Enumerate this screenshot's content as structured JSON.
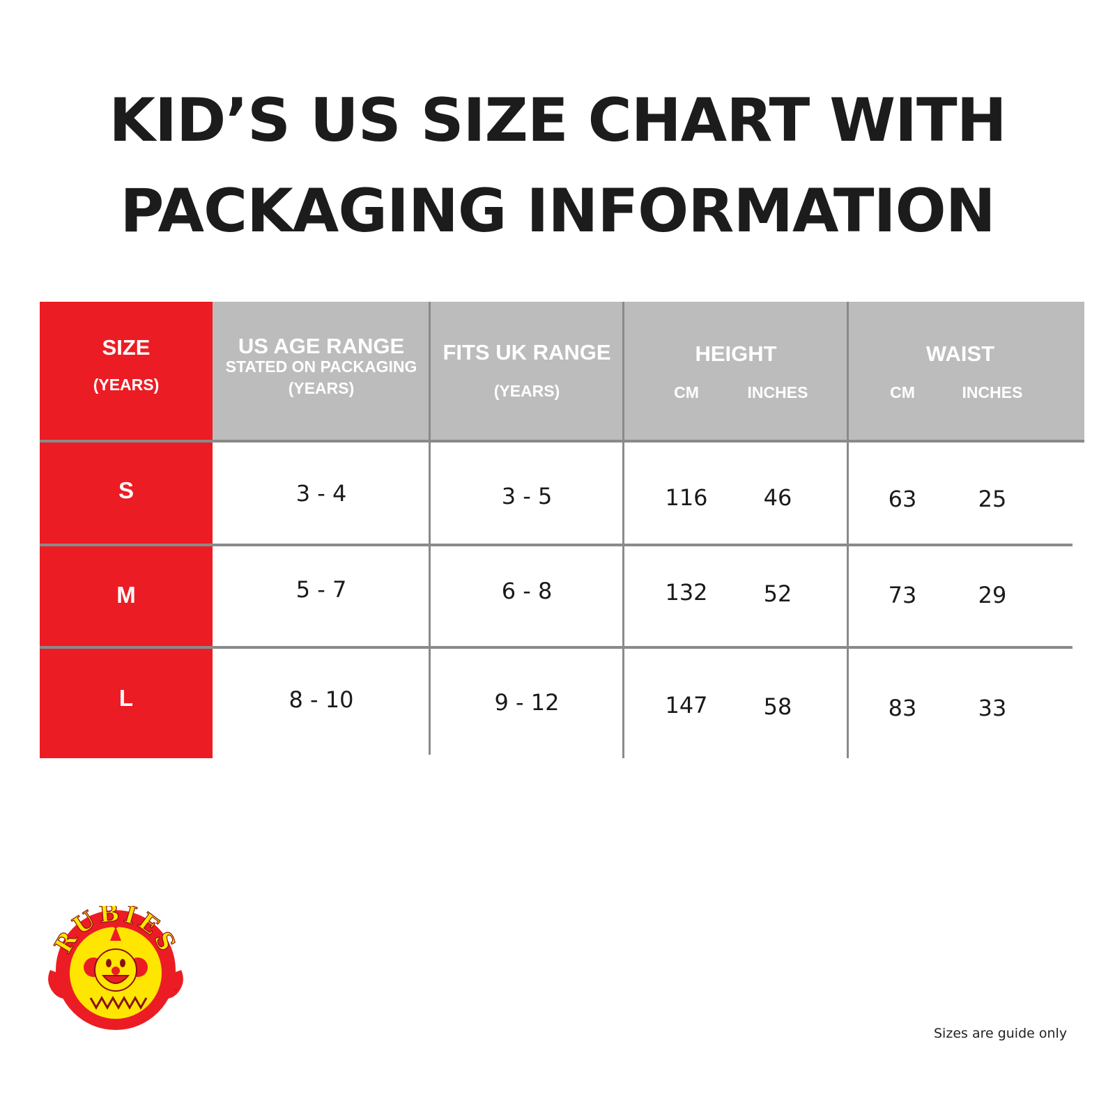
{
  "title": {
    "line1": "KID’S US SIZE CHART WITH",
    "line2": "PACKAGING INFORMATION"
  },
  "chart_data": {
    "type": "table",
    "headers": {
      "size": {
        "main": "SIZE",
        "sub": "(YEARS)"
      },
      "us_age": {
        "main": "US AGE RANGE",
        "sub1": "STATED ON PACKAGING",
        "sub2": "(YEARS)"
      },
      "uk_range": {
        "main": "FITS UK RANGE",
        "sub": "(YEARS)"
      },
      "height": {
        "main": "HEIGHT",
        "cm": "CM",
        "inches": "INCHES"
      },
      "waist": {
        "main": "WAIST",
        "cm": "CM",
        "inches": "INCHES"
      }
    },
    "rows": [
      {
        "size": "S",
        "us_age": "3 - 4",
        "uk_range": "3 - 5",
        "height_cm": "116",
        "height_in": "46",
        "waist_cm": "63",
        "waist_in": "25"
      },
      {
        "size": "M",
        "us_age": "5 - 7",
        "uk_range": "6 - 8",
        "height_cm": "132",
        "height_in": "52",
        "waist_cm": "73",
        "waist_in": "29"
      },
      {
        "size": "L",
        "us_age": "8 - 10",
        "uk_range": "9 - 12",
        "height_cm": "147",
        "height_in": "58",
        "waist_cm": "83",
        "waist_in": "33"
      }
    ]
  },
  "logo": {
    "text": "RUBIES",
    "icon": "clown-logo-icon",
    "color_red": "#ec1c24",
    "color_yellow": "#ffe600"
  },
  "colors": {
    "header_gray": "#bcbcbc",
    "size_red": "#ec1c24",
    "grid": "#8a8a8a"
  },
  "footnote": "Sizes are guide only"
}
